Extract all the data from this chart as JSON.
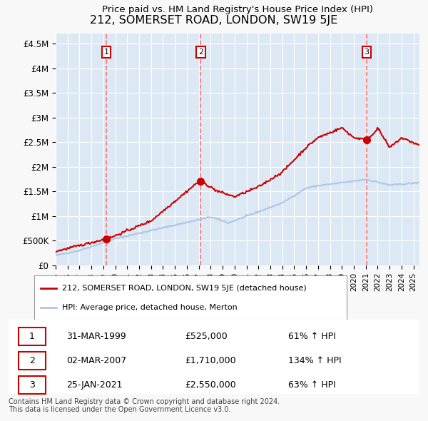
{
  "title": "212, SOMERSET ROAD, LONDON, SW19 5JE",
  "subtitle": "Price paid vs. HM Land Registry's House Price Index (HPI)",
  "ylabel_ticks": [
    "£0",
    "£500K",
    "£1M",
    "£1.5M",
    "£2M",
    "£2.5M",
    "£3M",
    "£3.5M",
    "£4M",
    "£4.5M"
  ],
  "ylabel_values": [
    0,
    500000,
    1000000,
    1500000,
    2000000,
    2500000,
    3000000,
    3500000,
    4000000,
    4500000
  ],
  "ylim": [
    0,
    4700000
  ],
  "xlim_start": 1995.0,
  "xlim_end": 2025.5,
  "sale_dates": [
    1999.25,
    2007.17,
    2021.07
  ],
  "sale_prices": [
    525000,
    1710000,
    2550000
  ],
  "sale_labels": [
    "1",
    "2",
    "3"
  ],
  "hpi_color": "#aec6e8",
  "price_color": "#cc0000",
  "sale_marker_color": "#cc0000",
  "dashed_line_color": "#ff6666",
  "bg_color": "#dce9f5",
  "plot_bg_color": "#dce9f5",
  "grid_color": "#ffffff",
  "legend_label_price": "212, SOMERSET ROAD, LONDON, SW19 5JE (detached house)",
  "legend_label_hpi": "HPI: Average price, detached house, Merton",
  "table_rows": [
    [
      "1",
      "31-MAR-1999",
      "£525,000",
      "61% ↑ HPI"
    ],
    [
      "2",
      "02-MAR-2007",
      "£1,710,000",
      "134% ↑ HPI"
    ],
    [
      "3",
      "25-JAN-2021",
      "£2,550,000",
      "63% ↑ HPI"
    ]
  ],
  "footnote": "Contains HM Land Registry data © Crown copyright and database right 2024.\nThis data is licensed under the Open Government Licence v3.0.",
  "xticks": [
    1995,
    1996,
    1997,
    1998,
    1999,
    2000,
    2001,
    2002,
    2003,
    2004,
    2005,
    2006,
    2007,
    2008,
    2009,
    2010,
    2011,
    2012,
    2013,
    2014,
    2015,
    2016,
    2017,
    2018,
    2019,
    2020,
    2021,
    2022,
    2023,
    2024,
    2025
  ]
}
